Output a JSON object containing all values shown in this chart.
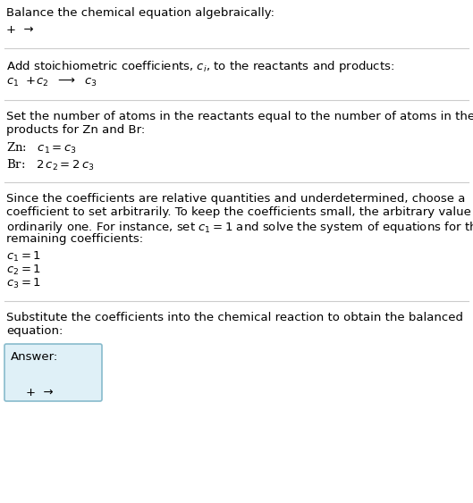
{
  "title": "Balance the chemical equation algebraically:",
  "section1_line1": "+  →",
  "section2_title": "Add stoichiometric coefficients, $c_i$, to the reactants and products:",
  "section2_line1_parts": [
    "$c_1$",
    " +$c_2$",
    "  →  $c_3$"
  ],
  "section3_title_line1": "Set the number of atoms in the reactants equal to the number of atoms in the",
  "section3_title_line2": "products for Zn and Br:",
  "section3_zn": "Zn:   $c_1 = c_3$",
  "section3_br": "Br:   $2\\,c_2 = 2\\,c_3$",
  "section4_title_line1": "Since the coefficients are relative quantities and underdetermined, choose a",
  "section4_title_line2": "coefficient to set arbitrarily. To keep the coefficients small, the arbitrary value is",
  "section4_title_line3": "ordinarily one. For instance, set $c_1 = 1$ and solve the system of equations for the",
  "section4_title_line4": "remaining coefficients:",
  "section4_c1": "$c_1 = 1$",
  "section4_c2": "$c_2 = 1$",
  "section4_c3": "$c_3 = 1$",
  "section5_line1": "Substitute the coefficients into the chemical reaction to obtain the balanced",
  "section5_line2": "equation:",
  "answer_label": "Answer:",
  "answer_line": "+  →",
  "bg_color": "#ffffff",
  "text_color": "#000000",
  "line_color": "#cccccc",
  "answer_box_bg": "#dff0f7",
  "answer_box_border": "#88bbcc",
  "font_size": 9.5,
  "font_size_math": 9.5
}
